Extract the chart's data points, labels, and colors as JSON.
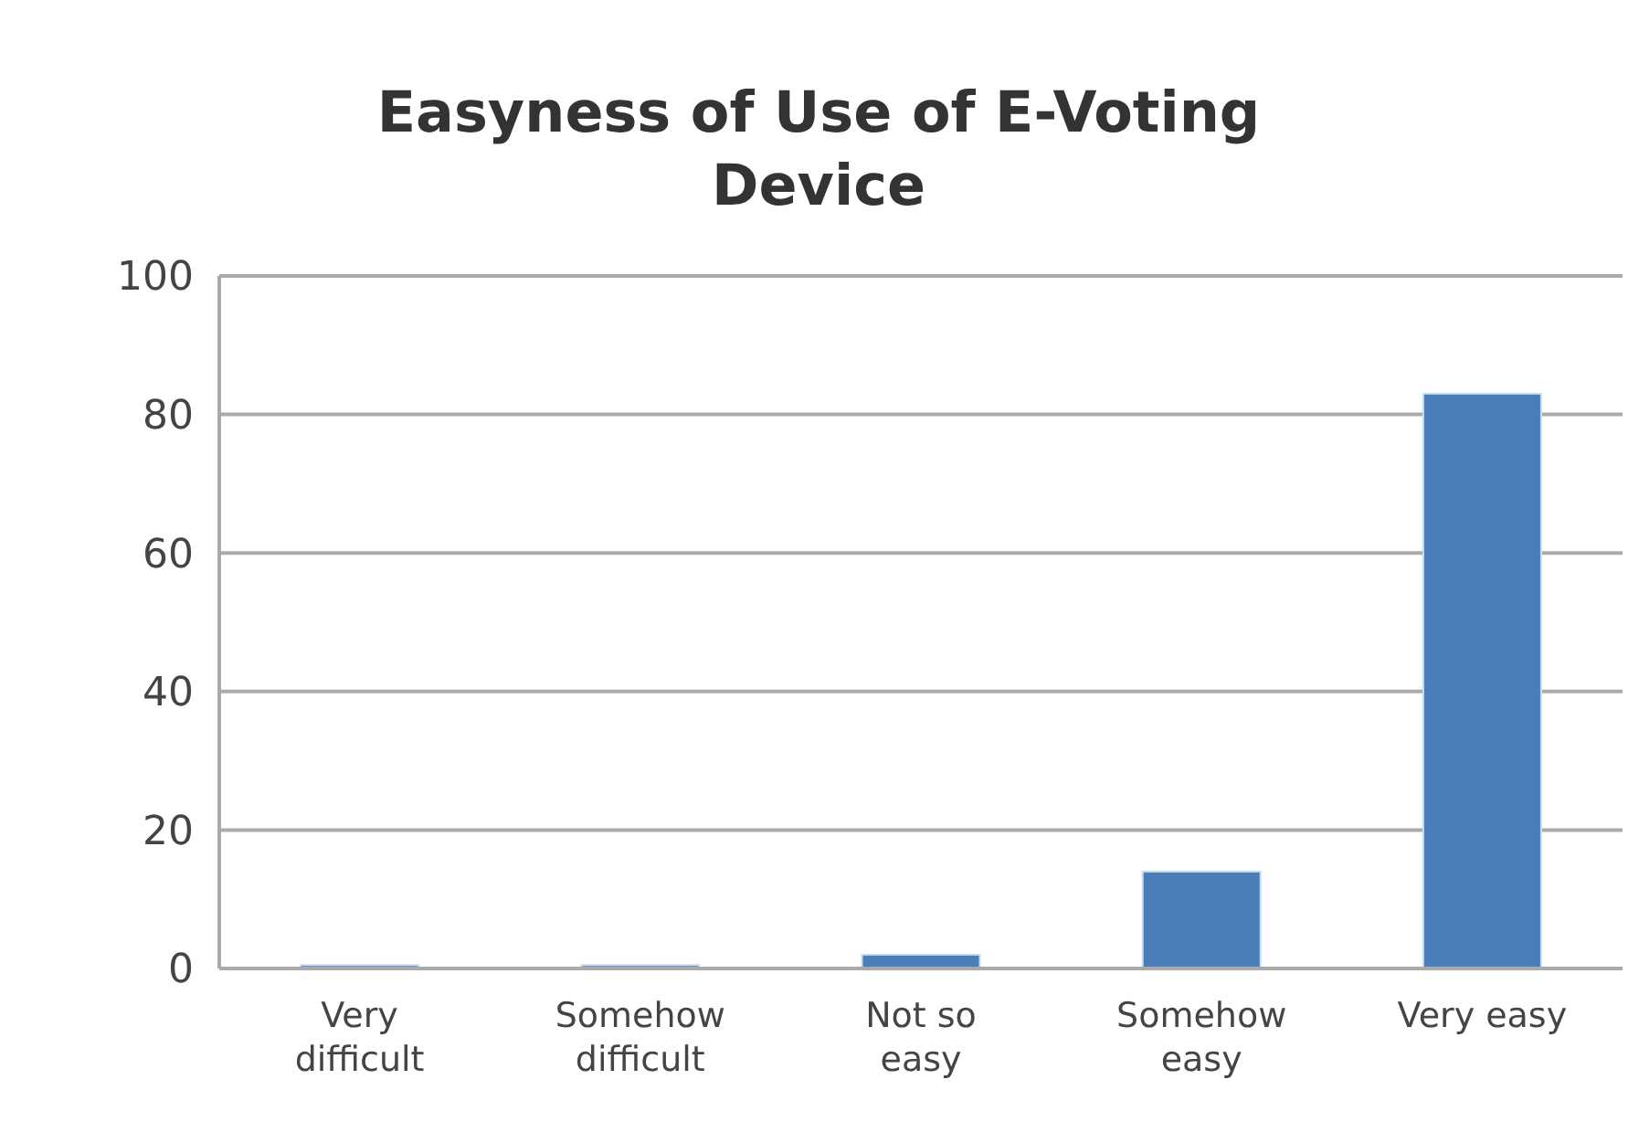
{
  "chart_data": {
    "type": "bar",
    "title": "Easyness of Use of E-Voting Device",
    "categories": [
      "Very difficult",
      "Somehow difficult",
      "Not so easy",
      "Somehow easy",
      "Very easy"
    ],
    "values": [
      0.5,
      0.5,
      2,
      14,
      83
    ],
    "color": "#4a7ebb",
    "ylim": [
      0,
      100
    ],
    "yticks": [
      0,
      20,
      40,
      60,
      80,
      100
    ],
    "grid": "y"
  }
}
